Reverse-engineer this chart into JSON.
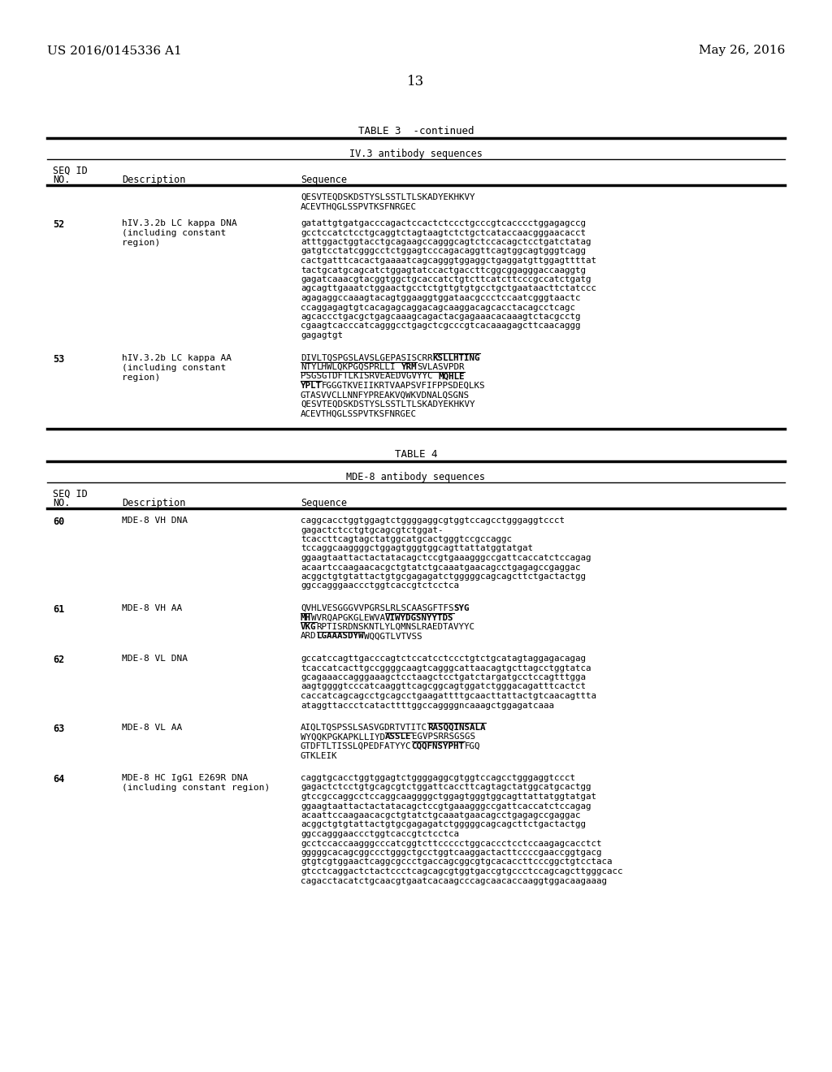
{
  "header_left": "US 2016/0145336 A1",
  "header_right": "May 26, 2016",
  "page_number": "13",
  "bg_color": "#ffffff"
}
